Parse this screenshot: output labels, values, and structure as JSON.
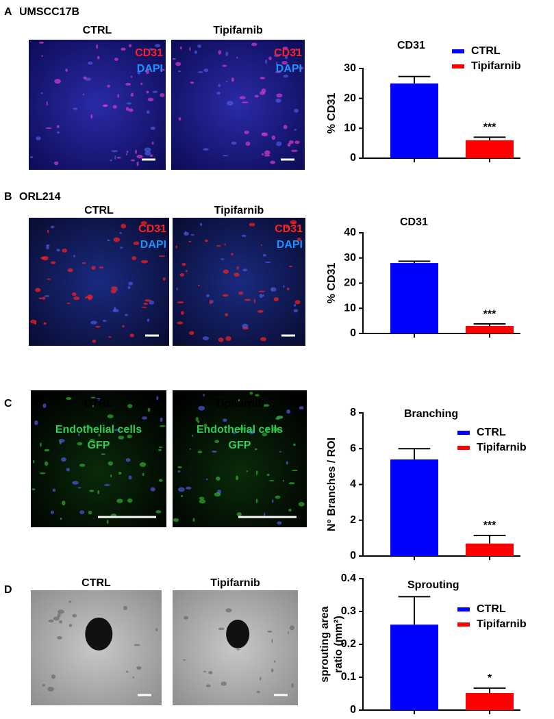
{
  "panels": [
    {
      "letter": "A",
      "name": "UMSCC17B",
      "images": [
        {
          "title": "CTRL",
          "stains": [
            "CD31",
            "DAPI"
          ]
        },
        {
          "title": "Tipifarnib",
          "stains": [
            "CD31",
            "DAPI"
          ]
        }
      ]
    },
    {
      "letter": "B",
      "name": "ORL214",
      "images": [
        {
          "title": "CTRL",
          "stains": [
            "CD31",
            "DAPI"
          ]
        },
        {
          "title": "Tipifarnib",
          "stains": [
            "CD31",
            "DAPI"
          ]
        }
      ]
    },
    {
      "letter": "C",
      "images": [
        {
          "title": "CTRL",
          "stains": [
            "Endothelial cells",
            "GFP"
          ]
        },
        {
          "title": "Tipifarnib",
          "stains": [
            "Endothelial cells",
            "GFP"
          ]
        }
      ]
    },
    {
      "letter": "D",
      "images": [
        {
          "title": "CTRL"
        },
        {
          "title": "Tipifarnib"
        }
      ]
    }
  ],
  "chart_data": [
    {
      "type": "bar",
      "title": "CD31",
      "ylabel": [
        "% CD31"
      ],
      "legend": true,
      "annotation": "***",
      "ylim": [
        0,
        30
      ],
      "yticks": [
        0,
        10,
        20,
        30
      ],
      "series": [
        {
          "name": "CTRL",
          "color": "#0000ff",
          "values": [
            25
          ],
          "errors": [
            2.3
          ]
        },
        {
          "name": "Tipifarnib",
          "color": "#ff0000",
          "values": [
            6
          ],
          "errors": [
            1
          ]
        }
      ]
    },
    {
      "type": "bar",
      "title": "CD31",
      "ylabel": [
        "% CD31"
      ],
      "legend": false,
      "annotation": "***",
      "ylim": [
        0,
        40
      ],
      "yticks": [
        0,
        10,
        20,
        30,
        40
      ],
      "series": [
        {
          "name": "CTRL",
          "color": "#0000ff",
          "values": [
            28
          ],
          "errors": [
            0.7
          ]
        },
        {
          "name": "Tipifarnib",
          "color": "#ff0000",
          "values": [
            3
          ],
          "errors": [
            0.8
          ]
        }
      ]
    },
    {
      "type": "bar",
      "title": "Branching",
      "ylabel": [
        "N° Branches / ROI"
      ],
      "legend": true,
      "annotation": "***",
      "ylim": [
        0,
        8
      ],
      "yticks": [
        0,
        2,
        4,
        6,
        8
      ],
      "series": [
        {
          "name": "CTRL",
          "color": "#0000ff",
          "values": [
            5.4
          ],
          "errors": [
            0.6
          ]
        },
        {
          "name": "Tipifarnib",
          "color": "#ff0000",
          "values": [
            0.7
          ],
          "errors": [
            0.45
          ]
        }
      ]
    },
    {
      "type": "bar",
      "title": "Sprouting",
      "ylabel": [
        "sprouting area",
        "ratio (mm²)"
      ],
      "legend": true,
      "annotation": "*",
      "ylim": [
        0,
        0.4
      ],
      "yticks": [
        0,
        0.1,
        0.2,
        0.3,
        0.4
      ],
      "series": [
        {
          "name": "CTRL",
          "color": "#0000ff",
          "values": [
            0.26
          ],
          "errors": [
            0.085
          ]
        },
        {
          "name": "Tipifarnib",
          "color": "#ff0000",
          "values": [
            0.052
          ],
          "errors": [
            0.015
          ]
        }
      ]
    }
  ]
}
